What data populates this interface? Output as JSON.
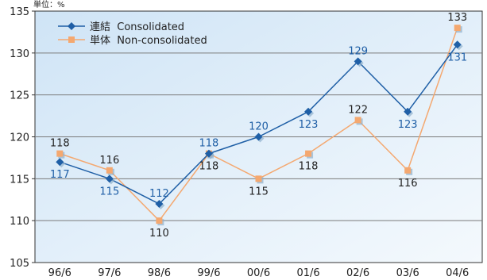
{
  "chart_data": {
    "type": "line",
    "unit_label": "単位：%",
    "categories": [
      "96/6",
      "97/6",
      "98/6",
      "99/6",
      "00/6",
      "01/6",
      "02/6",
      "03/6",
      "04/6"
    ],
    "ylim": [
      105,
      135
    ],
    "yticks": [
      105,
      110,
      115,
      120,
      125,
      130,
      135
    ],
    "grid": true,
    "legend_position": "top-left",
    "series": [
      {
        "name": "連結  Consolidated",
        "color": "#1f5fa6",
        "label_color": "#1f5fa6",
        "marker": "diamond",
        "values": [
          117,
          115,
          112,
          118,
          120,
          123,
          129,
          123,
          131
        ],
        "label_position": [
          "below",
          "below",
          "above",
          "above",
          "above",
          "below",
          "above",
          "below",
          "below"
        ]
      },
      {
        "name": "単体  Non-consolidated",
        "color": "#f4a870",
        "label_color": "#222222",
        "marker": "square",
        "values": [
          118,
          116,
          110,
          118,
          115,
          118,
          122,
          116,
          133
        ],
        "label_position": [
          "above",
          "above",
          "below",
          "below",
          "below",
          "below",
          "above",
          "below",
          "above"
        ]
      }
    ]
  }
}
